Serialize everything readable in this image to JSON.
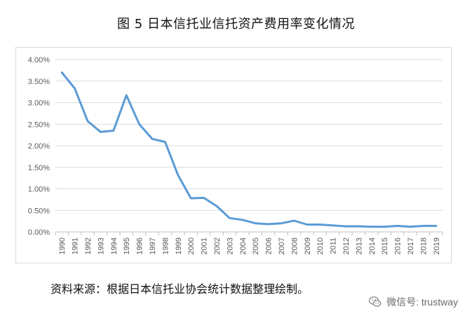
{
  "page": {
    "title": "图 5  日本信托业信托资产费用率变化情况",
    "source_note": "资料来源：根据日本信托业协会统计数据整理绘制。",
    "watermark_text": "微信号: trustway",
    "watermark_icon": "wechat-icon"
  },
  "chart_data": {
    "type": "line",
    "title": "",
    "xlabel": "",
    "ylabel": "",
    "x": [
      "1990",
      "1991",
      "1992",
      "1993",
      "1994",
      "1995",
      "1996",
      "1997",
      "1998",
      "1999",
      "2000",
      "2001",
      "2002",
      "2003",
      "2004",
      "2005",
      "2006",
      "2007",
      "2008",
      "2009",
      "2010",
      "2011",
      "2012",
      "2013",
      "2014",
      "2015",
      "2016",
      "2017",
      "2018",
      "2019"
    ],
    "series": [
      {
        "values": [
          0.037,
          0.0333,
          0.0257,
          0.0232,
          0.0235,
          0.0317,
          0.025,
          0.0216,
          0.0209,
          0.0132,
          0.0078,
          0.0079,
          0.006,
          0.0032,
          0.0028,
          0.002,
          0.0018,
          0.002,
          0.0026,
          0.0017,
          0.0017,
          0.0015,
          0.0013,
          0.0013,
          0.0012,
          0.0012,
          0.0014,
          0.0012,
          0.0014,
          0.0014
        ],
        "color": "#5b9bd5"
      }
    ],
    "ylim": [
      0,
      0.04
    ],
    "y_ticks": [
      0,
      0.005,
      0.01,
      0.015,
      0.02,
      0.025,
      0.03,
      0.035,
      0.04
    ],
    "y_tick_labels": [
      "0.00%",
      "0.50%",
      "1.00%",
      "1.50%",
      "2.00%",
      "2.50%",
      "3.00%",
      "3.50%",
      "4.00%"
    ],
    "grid": true,
    "legend": "none",
    "colors": {
      "line": "#5b9bd5",
      "grid": "#d9d9d9",
      "axis": "#bfbfbf",
      "tick_text": "#595959"
    }
  }
}
